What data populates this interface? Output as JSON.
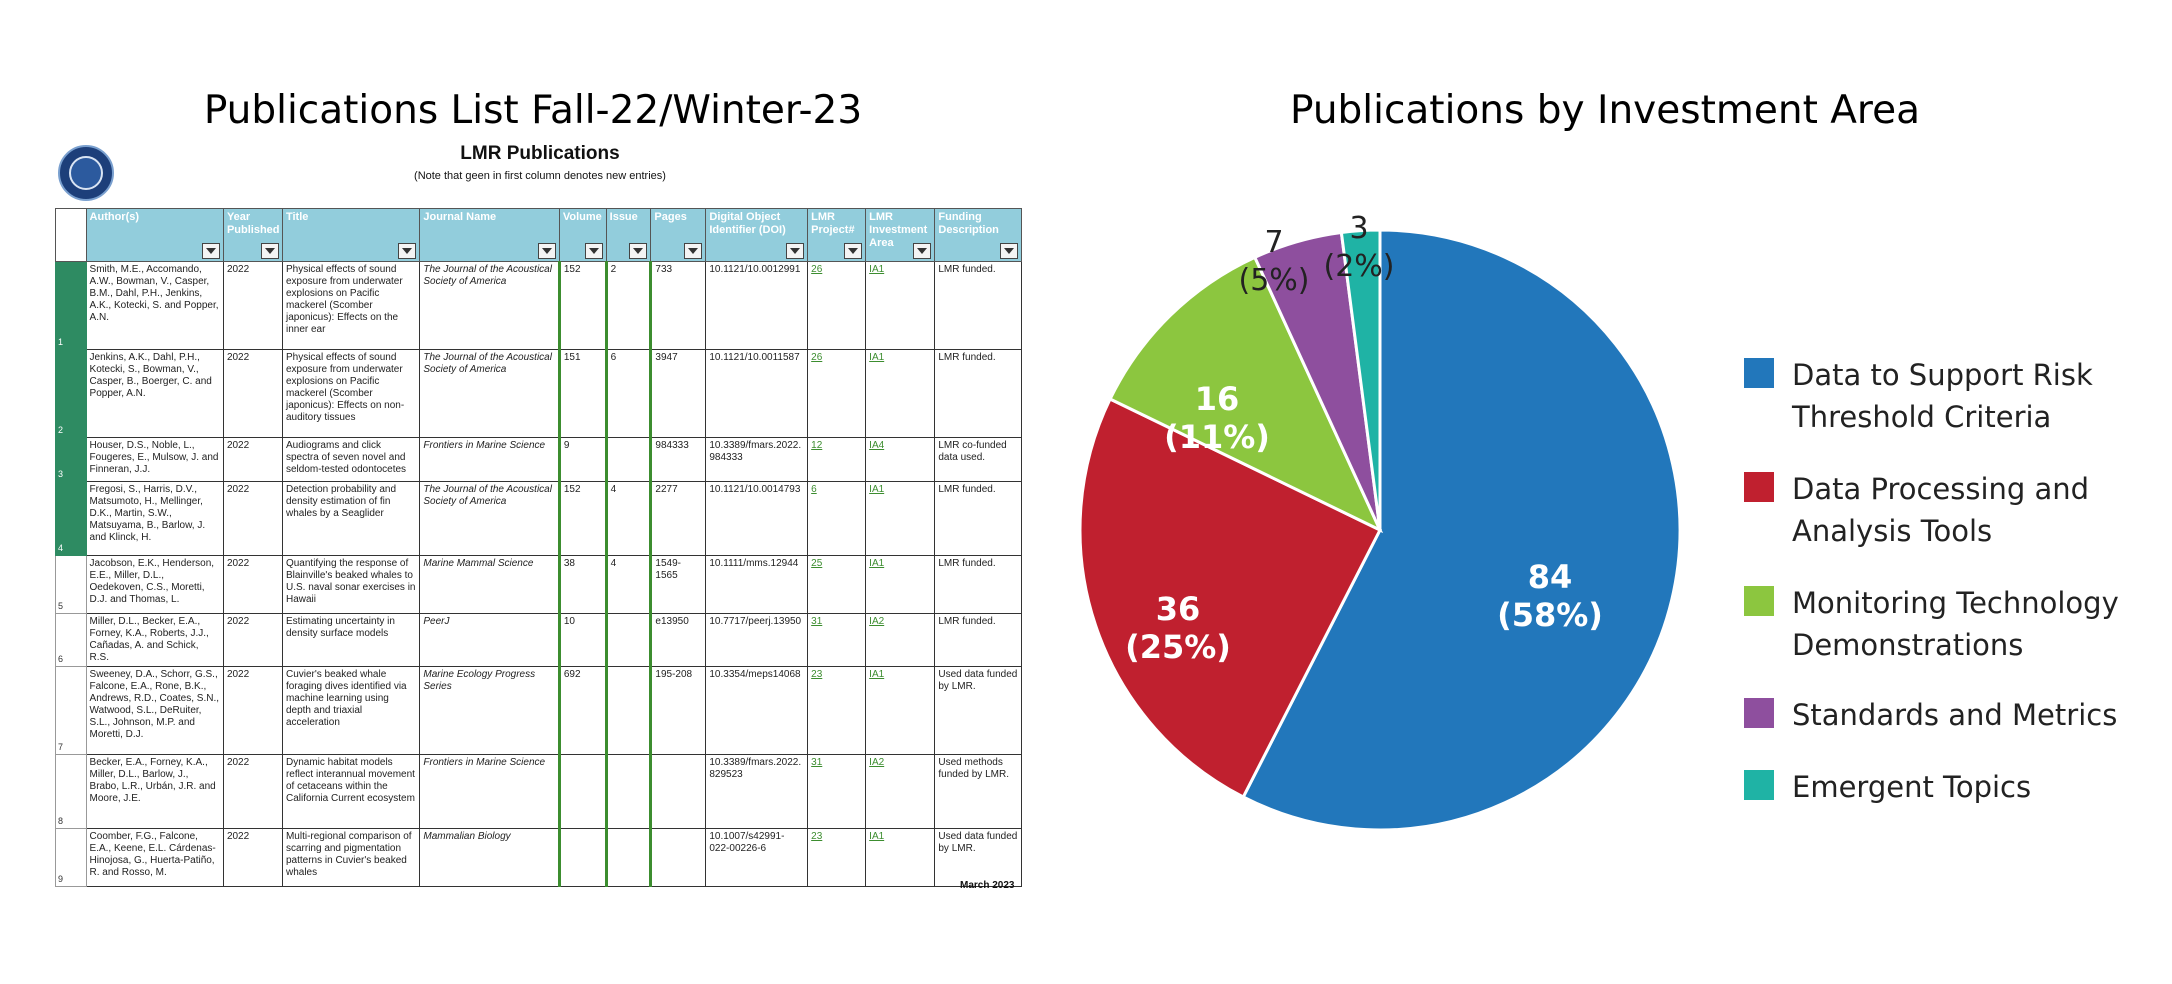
{
  "left_title": "Publications List Fall-22/Winter-23",
  "right_title": "Publications by Investment Area",
  "sheet": {
    "title": "LMR Publications",
    "note": "(Note that geen in first column denotes new entries)",
    "date": "March 2023",
    "columns": [
      "Author(s)",
      "Year Published",
      "Title",
      "Journal Name",
      "Volume",
      "Issue",
      "Pages",
      "Digital Object Identifier (DOI)",
      "LMR Project#",
      "LMR Investment Area",
      "Funding Description"
    ],
    "rows": [
      {
        "num": "1",
        "new": true,
        "authors": "Smith, M.E., Accomando, A.W., Bowman, V., Casper, B.M., Dahl, P.H., Jenkins, A.K., Kotecki, S. and Popper, A.N.",
        "year": "2022",
        "title": "Physical effects of sound exposure from underwater explosions on Pacific mackerel (Scomber japonicus): Effects on the inner ear",
        "journal": "The Journal of the Acoustical Society of America",
        "volume": "152",
        "issue": "2",
        "pages": "733",
        "doi": "10.1121/10.0012991",
        "project": "26",
        "area": "IA1",
        "funding": "LMR funded."
      },
      {
        "num": "2",
        "new": true,
        "authors": "Jenkins, A.K., Dahl, P.H., Kotecki, S., Bowman, V., Casper, B., Boerger, C. and Popper, A.N.",
        "year": "2022",
        "title": "Physical effects of sound exposure from underwater explosions on Pacific mackerel (Scomber japonicus): Effects on non-auditory tissues",
        "journal": "The Journal of the Acoustical Society of America",
        "volume": "151",
        "issue": "6",
        "pages": "3947",
        "doi": "10.1121/10.0011587",
        "project": "26",
        "area": "IA1",
        "funding": "LMR funded."
      },
      {
        "num": "3",
        "new": true,
        "authors": "Houser, D.S., Noble, L., Fougeres, E., Mulsow, J. and Finneran, J.J.",
        "year": "2022",
        "title": "Audiograms and click spectra of seven novel and seldom-tested odontocetes",
        "journal": "Frontiers in Marine Science",
        "volume": "9",
        "issue": "",
        "pages": "984333",
        "doi": "10.3389/fmars.2022.984333",
        "project": "12",
        "area": "IA4",
        "funding": "LMR co-funded data used."
      },
      {
        "num": "4",
        "new": true,
        "authors": "Fregosi, S., Harris, D.V., Matsumoto, H., Mellinger, D.K., Martin, S.W., Matsuyama, B., Barlow, J. and Klinck, H.",
        "year": "2022",
        "title": "Detection probability and density estimation of fin whales by a Seaglider",
        "journal": "The Journal of the Acoustical Society of America",
        "volume": "152",
        "issue": "4",
        "pages": "2277",
        "doi": "10.1121/10.0014793",
        "project": "6",
        "area": "IA1",
        "funding": "LMR funded."
      },
      {
        "num": "5",
        "new": false,
        "authors": "Jacobson, E.K., Henderson, E.E., Miller, D.L., Oedekoven, C.S., Moretti, D.J. and Thomas, L.",
        "year": "2022",
        "title": "Quantifying the response of Blainville's beaked whales to U.S. naval sonar exercises in Hawaii",
        "journal": "Marine Mammal Science",
        "volume": "38",
        "issue": "4",
        "pages": "1549-1565",
        "doi": "10.1111/mms.12944",
        "project": "25",
        "area": "IA1",
        "funding": "LMR funded."
      },
      {
        "num": "6",
        "new": false,
        "authors": "Miller, D.L., Becker, E.A., Forney, K.A., Roberts, J.J., Cañadas, A. and Schick, R.S.",
        "year": "2022",
        "title": "Estimating uncertainty in density surface models",
        "journal": "PeerJ",
        "volume": "10",
        "issue": "",
        "pages": "e13950",
        "doi": "10.7717/peerj.13950",
        "project": "31",
        "area": "IA2",
        "funding": "LMR funded."
      },
      {
        "num": "7",
        "new": false,
        "authors": "Sweeney, D.A., Schorr, G.S., Falcone, E.A., Rone, B.K., Andrews, R.D., Coates, S.N., Watwood, S.L., DeRuiter, S.L., Johnson, M.P. and Moretti, D.J.",
        "year": "2022",
        "title": "Cuvier's beaked whale foraging dives identified via machine learning using depth and triaxial acceleration",
        "journal": "Marine Ecology Progress Series",
        "volume": "692",
        "issue": "",
        "pages": "195-208",
        "doi": "10.3354/meps14068",
        "project": "23",
        "area": "IA1",
        "funding": "Used data funded by LMR."
      },
      {
        "num": "8",
        "new": false,
        "authors": "Becker, E.A., Forney, K.A., Miller, D.L., Barlow, J., Brabo, L.R., Urbán, J.R. and Moore, J.E.",
        "year": "2022",
        "title": "Dynamic habitat models reflect interannual movement of cetaceans within the California Current ecosystem",
        "journal": "Frontiers in Marine Science",
        "volume": "",
        "issue": "",
        "pages": "",
        "doi": "10.3389/fmars.2022.829523",
        "project": "31",
        "area": "IA2",
        "funding": "Used methods funded by LMR."
      },
      {
        "num": "9",
        "new": false,
        "authors": "Coomber, F.G., Falcone, E.A., Keene, E.L. Cárdenas-Hinojosa, G., Huerta-Patiño, R. and Rosso, M.",
        "year": "2022",
        "title": "Multi-regional comparison of scarring and pigmentation patterns in Cuvier's beaked whales",
        "journal": "Mammalian Biology",
        "volume": "",
        "issue": "",
        "pages": "",
        "doi": "10.1007/s42991-022-00226-6",
        "project": "23",
        "area": "IA1",
        "funding": "Used data funded by LMR."
      }
    ]
  },
  "chart_data": {
    "type": "pie",
    "title": "Publications by Investment Area",
    "slices": [
      {
        "name": "Data to Support Risk Threshold Criteria",
        "value": 84,
        "label": "84",
        "pct": "(58%)",
        "color": "#2277bb"
      },
      {
        "name": "Data Processing and Analysis Tools",
        "value": 36,
        "label": "36",
        "pct": "(25%)",
        "color": "#c0202f"
      },
      {
        "name": "Monitoring Technology Demonstrations",
        "value": 16,
        "label": "16",
        "pct": "(11%)",
        "color": "#8cc63f"
      },
      {
        "name": "Standards and Metrics",
        "value": 7,
        "label": "7",
        "pct": "(5%)",
        "color": "#8e4f9e"
      },
      {
        "name": "Emergent Topics",
        "value": 3,
        "label": "3",
        "pct": "(2%)",
        "color": "#1fb3a5"
      }
    ],
    "legend_position": "right"
  }
}
